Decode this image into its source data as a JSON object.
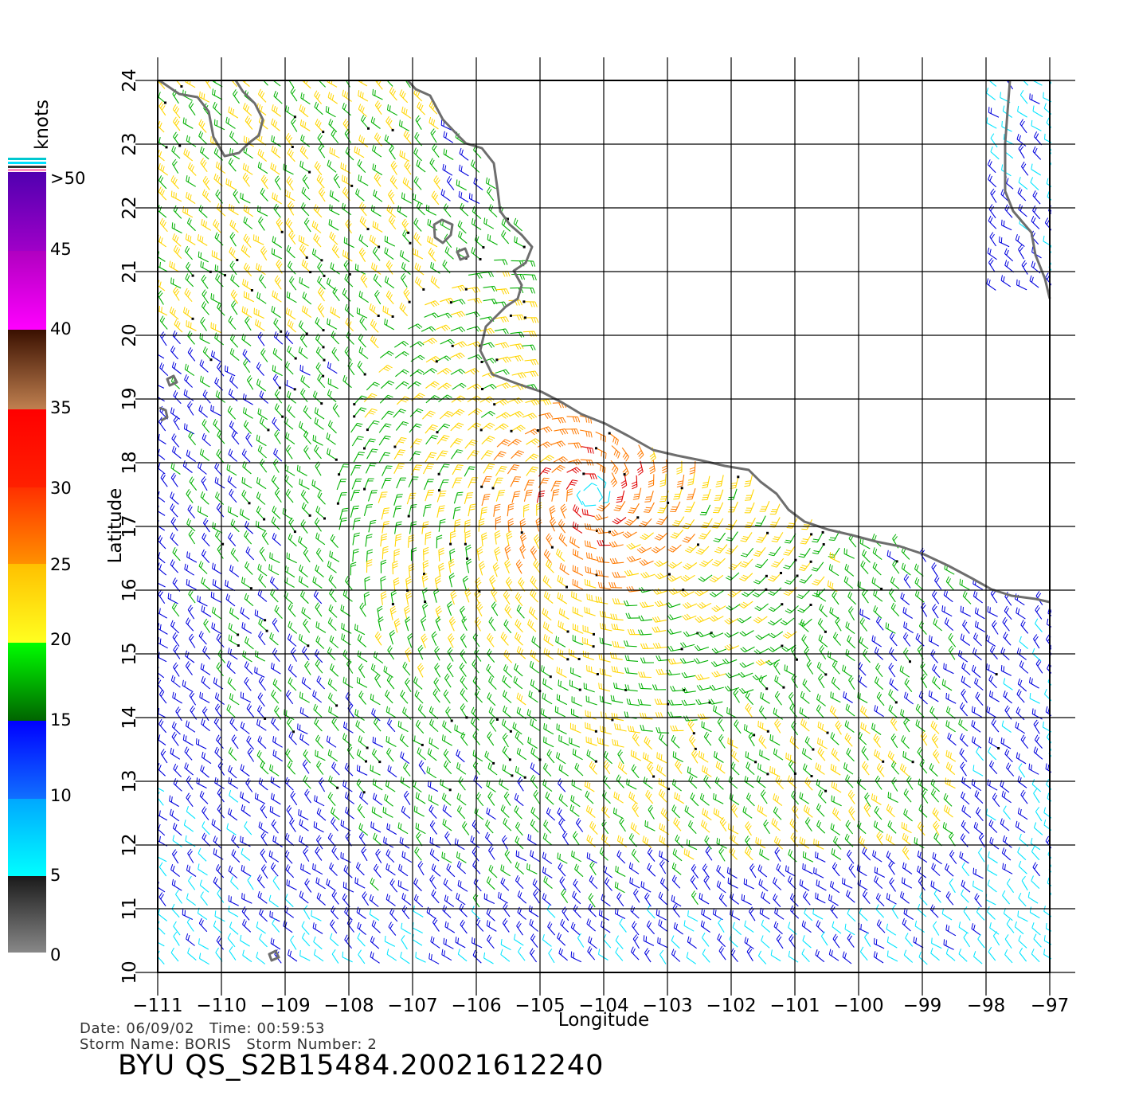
{
  "colorbar": {
    "unit": "knots",
    "labels": [
      ">50",
      "45",
      "40",
      "35",
      "30",
      "25",
      "20",
      "15",
      "10",
      "5",
      "0"
    ]
  },
  "axes": {
    "xlabel": "Longitude",
    "ylabel": "Latitude",
    "lon_ticks": [
      "−111",
      "−110",
      "−109",
      "−108",
      "−107",
      "−106",
      "−105",
      "−104",
      "−103",
      "−102",
      "−101",
      "−100",
      "−99",
      "−98",
      "−97"
    ],
    "lat_ticks": [
      "10",
      "11",
      "12",
      "13",
      "14",
      "15",
      "16",
      "17",
      "18",
      "19",
      "20",
      "21",
      "22",
      "23",
      "24"
    ],
    "lon_range": [
      -111,
      -96.6
    ],
    "lat_range": [
      10,
      24
    ]
  },
  "footer": {
    "line1": "Date: 06/09/02   Time: 00:59:53",
    "line2": "Storm Name: BORIS   Storm Number: 2",
    "product": "BYU QS_S2B15484.20021612240"
  },
  "colors": {
    "cyan": "#00e5ff",
    "blue": "#0000dd",
    "green": "#00b000",
    "yellow": "#ffd500",
    "orange": "#ff7a00",
    "red": "#e00000",
    "coast": "#6e6e6e"
  },
  "wind_field": {
    "storm_name": "BORIS",
    "storm_center": [
      -104.2,
      17.5
    ],
    "max_wind_knots": 35
  }
}
